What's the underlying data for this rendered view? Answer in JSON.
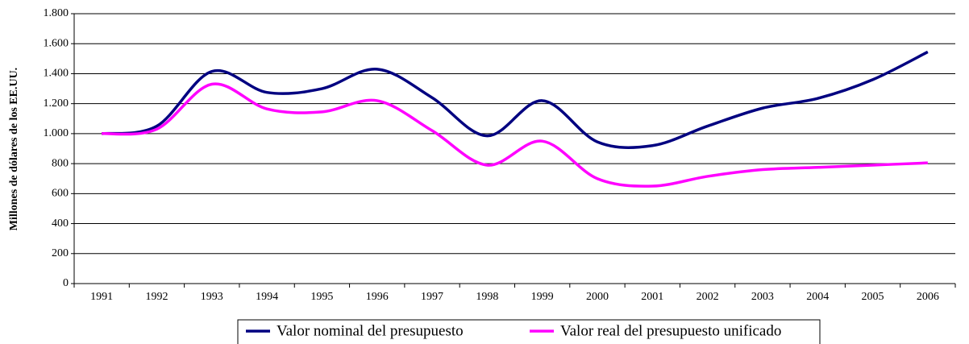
{
  "chart_data": {
    "type": "line",
    "y_label": "Millones de dólares de los EE.UU.",
    "categories": [
      "1991",
      "1992",
      "1993",
      "1994",
      "1995",
      "1996",
      "1997",
      "1998",
      "1999",
      "2000",
      "2001",
      "2002",
      "2003",
      "2004",
      "2005",
      "2006"
    ],
    "series": [
      {
        "name": "Valor nominal del presupuesto",
        "color": "#000080",
        "values": [
          1000,
          1050,
          1415,
          1275,
          1300,
          1430,
          1240,
          985,
          1220,
          945,
          920,
          1050,
          1170,
          1235,
          1360,
          1545
        ]
      },
      {
        "name": "Valor real del presupuesto unificado",
        "color": "#ff00ff",
        "values": [
          1000,
          1030,
          1330,
          1165,
          1145,
          1220,
          1020,
          790,
          950,
          700,
          650,
          715,
          760,
          775,
          790,
          805
        ]
      }
    ],
    "ylim": [
      0,
      1800
    ],
    "yticks": [
      0,
      200,
      400,
      600,
      800,
      {
        "value": 1000,
        "label": "1.000"
      },
      {
        "value": 1200,
        "label": "1.200"
      },
      {
        "value": 1400,
        "label": "1.400"
      },
      {
        "value": 1600,
        "label": "1.600"
      },
      {
        "value": 1800,
        "label": "1.800"
      }
    ],
    "grid": true,
    "smooth": true,
    "legend": "bottom"
  }
}
